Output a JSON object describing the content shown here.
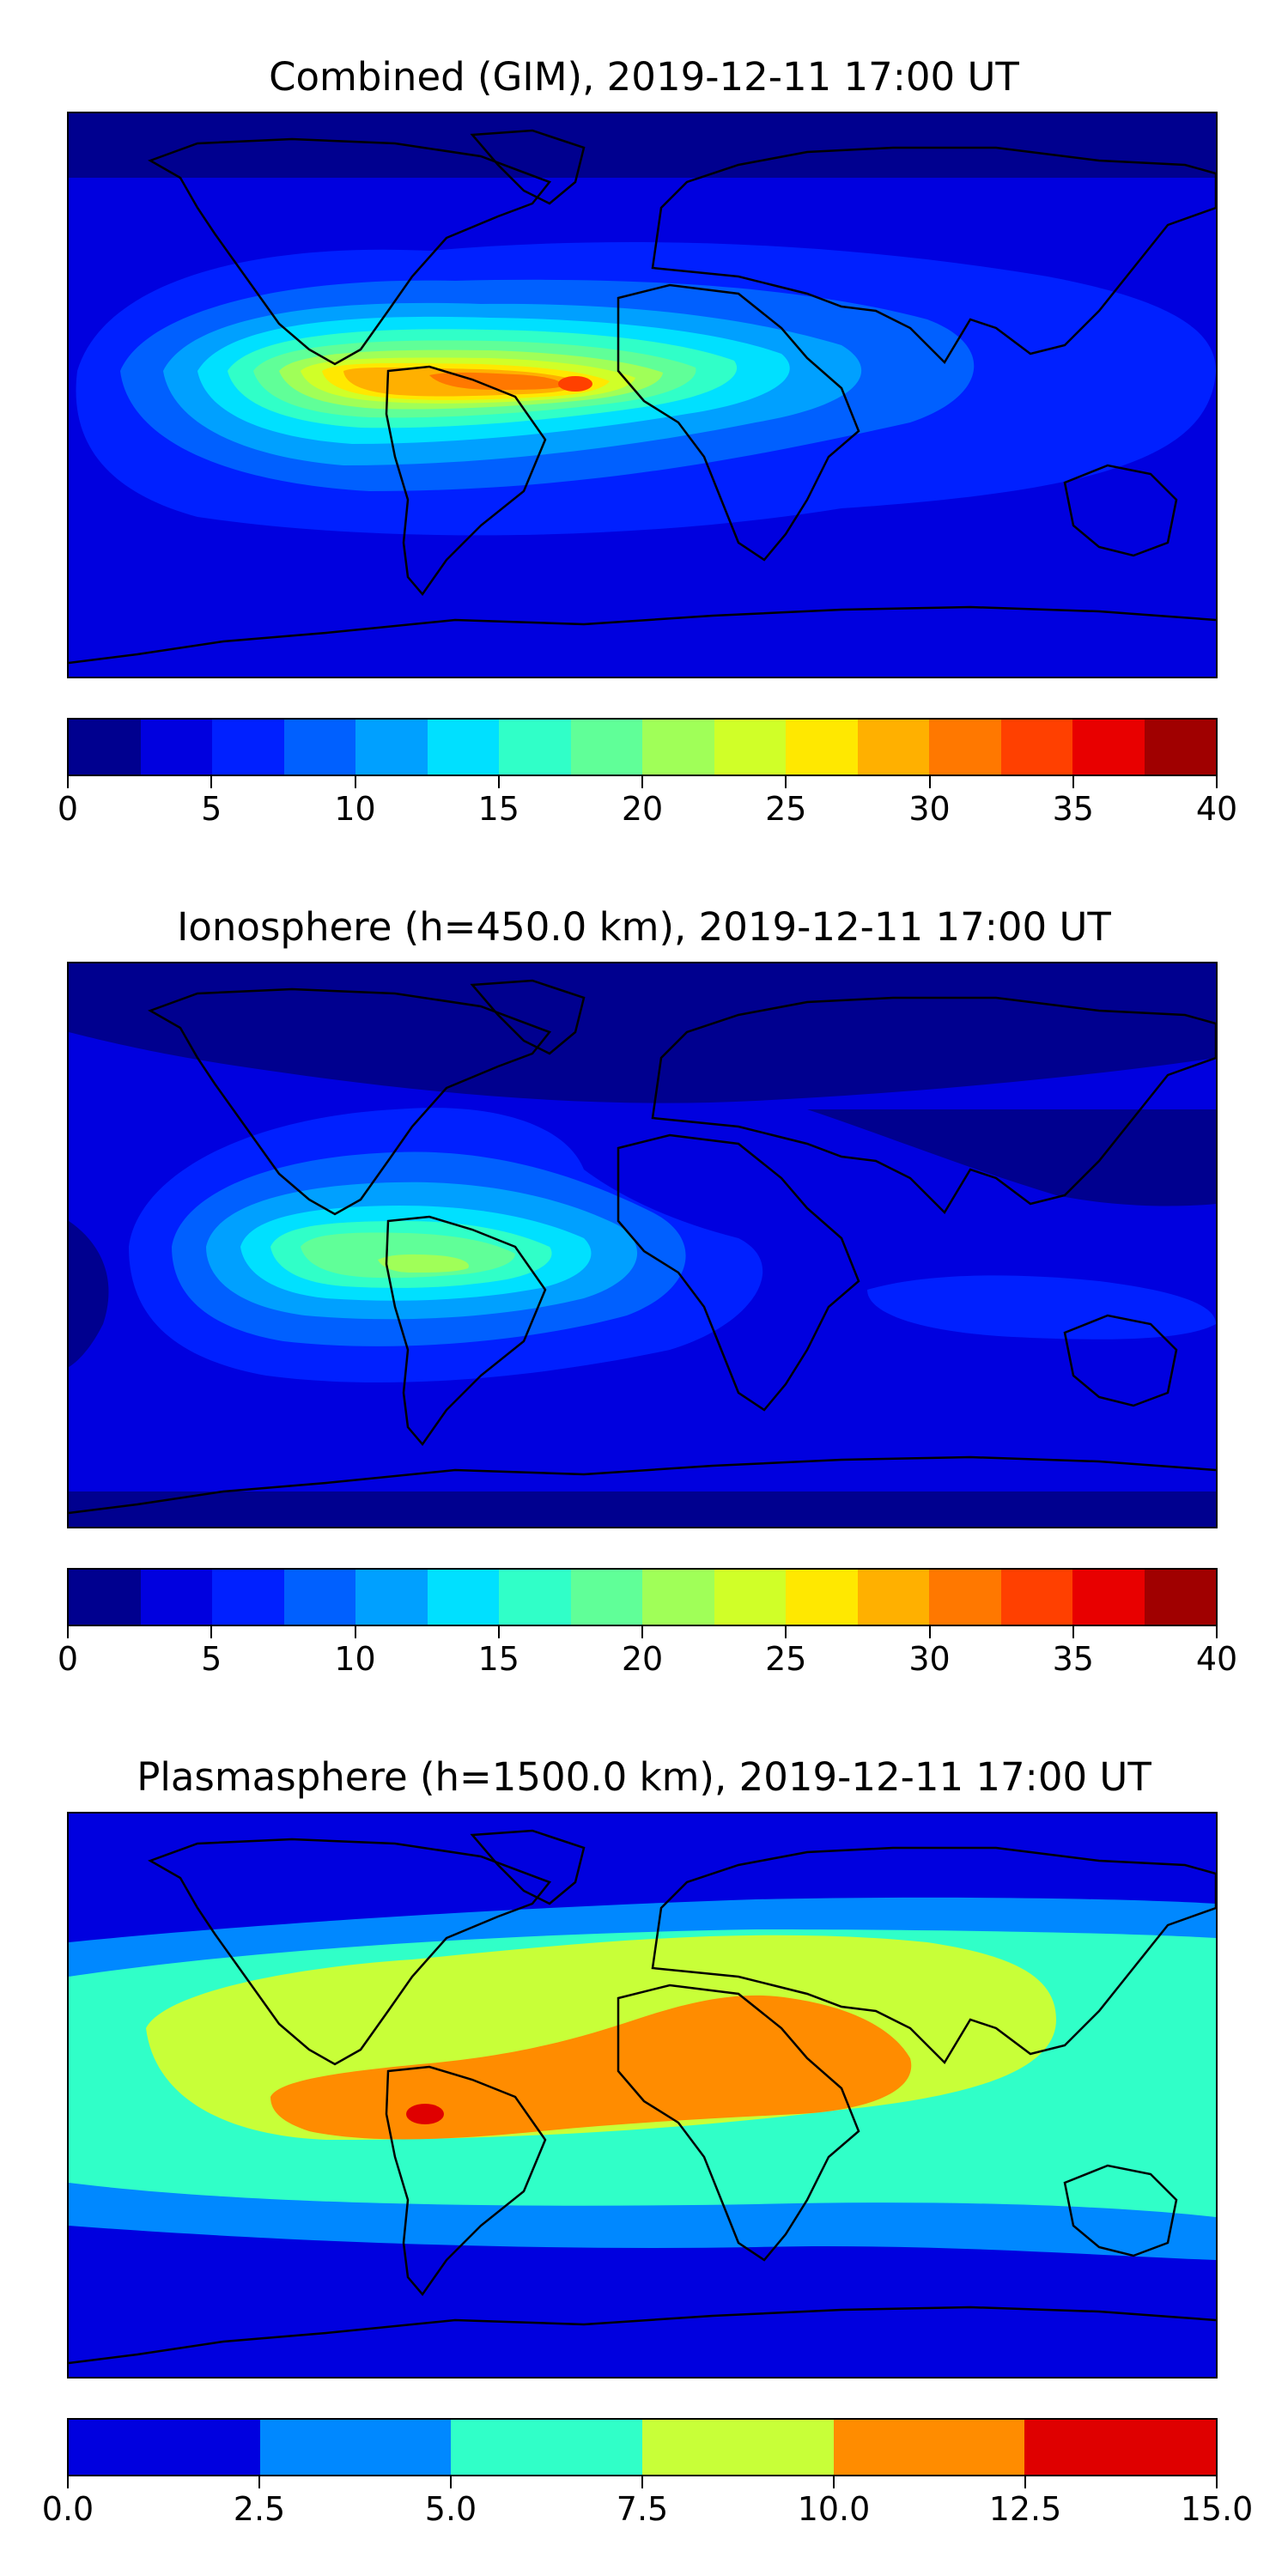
{
  "panels": [
    {
      "title": "Combined (GIM), 2019-12-11 17:00 UT",
      "colorbar_ticks": [
        "0",
        "5",
        "10",
        "15",
        "20",
        "25",
        "30",
        "35",
        "40"
      ],
      "colorbar_range": [
        0,
        40
      ],
      "colorbar_step": 2.5
    },
    {
      "title": "Ionosphere  (h=450.0 km), 2019-12-11 17:00 UT",
      "colorbar_ticks": [
        "0",
        "5",
        "10",
        "15",
        "20",
        "25",
        "30",
        "35",
        "40"
      ],
      "colorbar_range": [
        0,
        40
      ],
      "colorbar_step": 2.5
    },
    {
      "title": "Plasmasphere (h=1500.0 km), 2019-12-11 17:00 UT",
      "colorbar_ticks": [
        "0.0",
        "2.5",
        "5.0",
        "7.5",
        "10.0",
        "12.5",
        "15.0"
      ],
      "colorbar_range": [
        0,
        15
      ],
      "colorbar_step": 2.5
    }
  ],
  "colors": {
    "jet16": [
      "#00008f",
      "#0000df",
      "#0020ff",
      "#0060ff",
      "#00a0ff",
      "#00e0ff",
      "#30ffc8",
      "#60ff98",
      "#a0ff58",
      "#d0ff28",
      "#ffe800",
      "#ffb000",
      "#ff7800",
      "#ff4000",
      "#e80000",
      "#a00000"
    ],
    "jet6": [
      "#0000df",
      "#0088ff",
      "#30ffc8",
      "#c8ff38",
      "#ff8c00",
      "#df0000"
    ],
    "coast": "#000000"
  }
}
